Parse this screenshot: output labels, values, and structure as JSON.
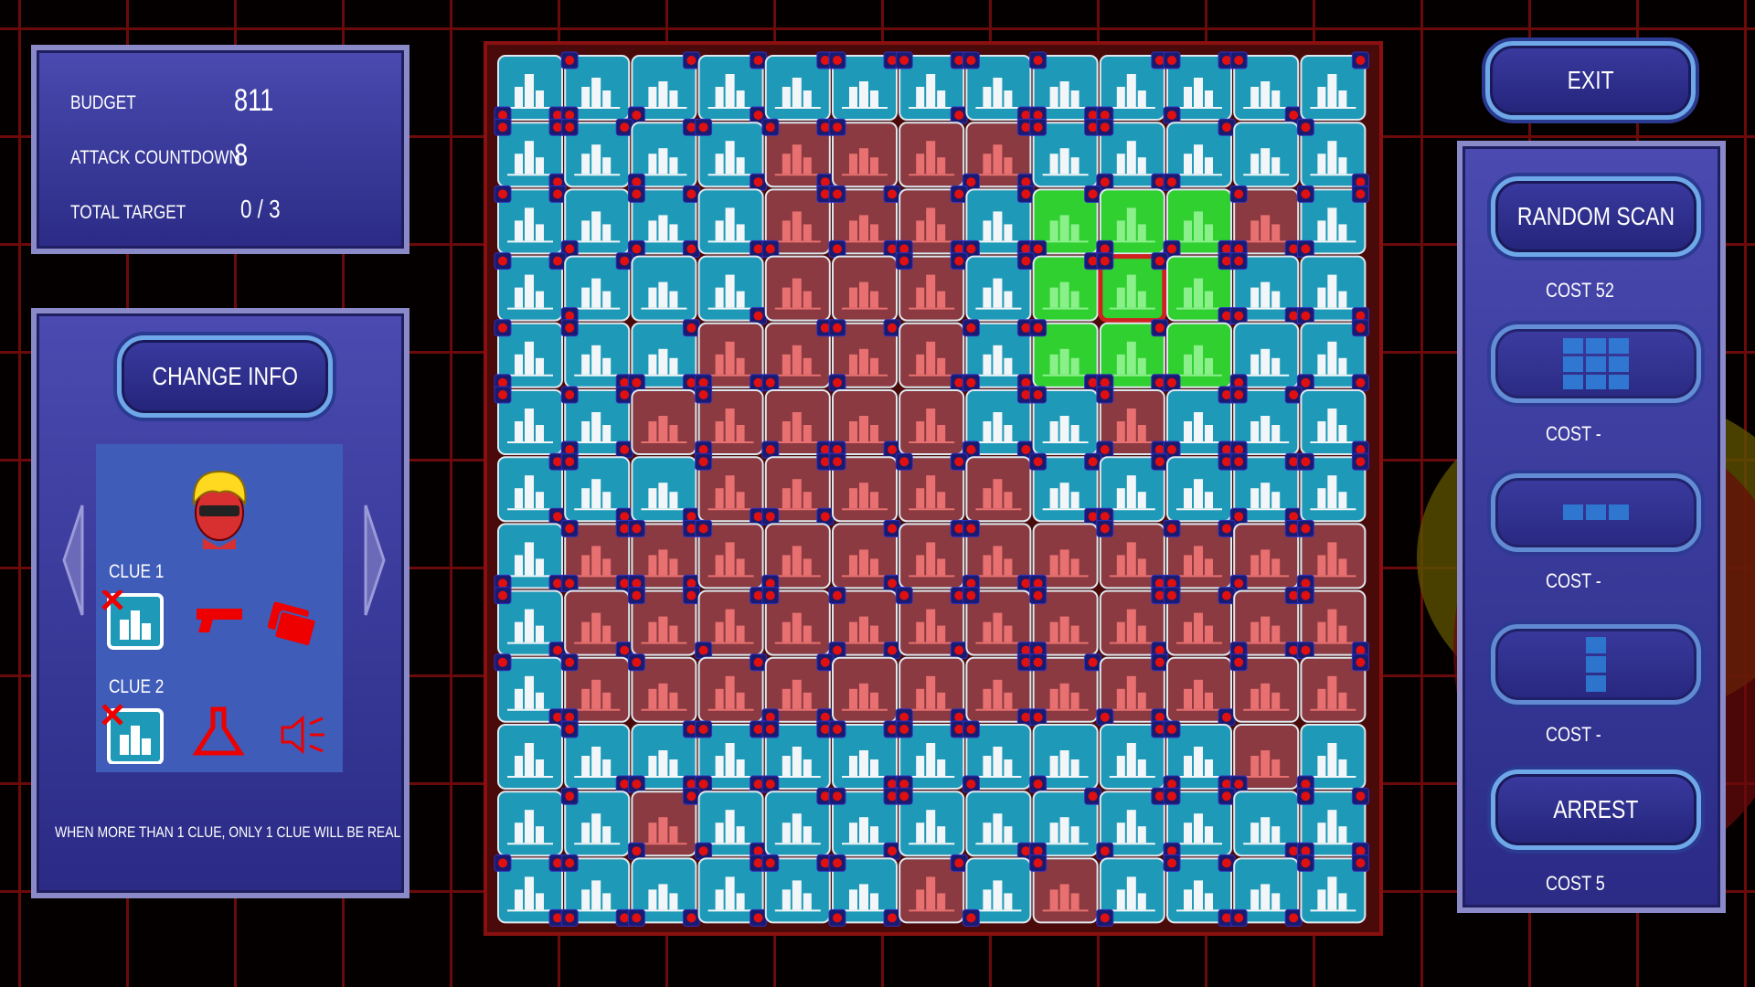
{
  "stats": {
    "budget": {
      "label": "BUDGET",
      "value": "811"
    },
    "attack_countdown": {
      "label": "ATTACK COUNTDOWN",
      "value": "8"
    },
    "total_target": {
      "label": "TOTAL TARGET",
      "value": "0 / 3"
    }
  },
  "info_panel": {
    "button": "CHANGE INFO",
    "clues": [
      {
        "label": "CLUE 1"
      },
      {
        "label": "CLUE 2"
      }
    ],
    "note": "WHEN MORE THAN 1 CLUE, ONLY 1 CLUE WILL BE REAL"
  },
  "menu": {
    "exit": "EXIT",
    "actions": [
      {
        "label": "RANDOM SCAN",
        "cost": "COST 52"
      },
      {
        "cost": "COST -"
      },
      {
        "cost": "COST -"
      },
      {
        "cost": "COST -"
      },
      {
        "label": "ARREST",
        "cost": "COST 5"
      }
    ]
  }
}
